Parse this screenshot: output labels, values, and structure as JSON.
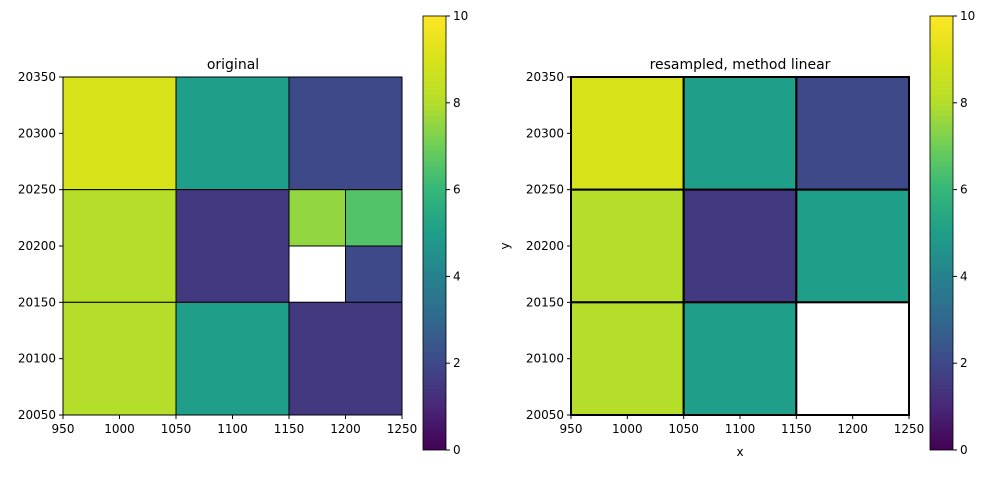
{
  "chart_data": [
    {
      "type": "heatmap",
      "title": "original",
      "xlabel": "",
      "ylabel": "",
      "xlim": [
        950,
        1250
      ],
      "ylim": [
        20050,
        20350
      ],
      "xticks": [
        950,
        1000,
        1050,
        1100,
        1150,
        1200,
        1250
      ],
      "yticks": [
        20050,
        20100,
        20150,
        20200,
        20250,
        20300,
        20350
      ],
      "colormap": "viridis",
      "grid": false,
      "cells": [
        {
          "x0": 950,
          "x1": 1050,
          "y0": 20250,
          "y1": 20350,
          "value": 9
        },
        {
          "x0": 1050,
          "x1": 1150,
          "y0": 20250,
          "y1": 20350,
          "value": 5
        },
        {
          "x0": 1150,
          "x1": 1250,
          "y0": 20250,
          "y1": 20350,
          "value": 2
        },
        {
          "x0": 950,
          "x1": 1050,
          "y0": 20150,
          "y1": 20250,
          "value": 8
        },
        {
          "x0": 1050,
          "x1": 1150,
          "y0": 20150,
          "y1": 20250,
          "value": 1.5
        },
        {
          "x0": 1150,
          "x1": 1200,
          "y0": 20200,
          "y1": 20250,
          "value": 7.5
        },
        {
          "x0": 1200,
          "x1": 1250,
          "y0": 20200,
          "y1": 20250,
          "value": 6.5
        },
        {
          "x0": 1150,
          "x1": 1200,
          "y0": 20150,
          "y1": 20200,
          "value": null
        },
        {
          "x0": 1200,
          "x1": 1250,
          "y0": 20150,
          "y1": 20200,
          "value": 2
        },
        {
          "x0": 950,
          "x1": 1050,
          "y0": 20050,
          "y1": 20150,
          "value": 8
        },
        {
          "x0": 1050,
          "x1": 1150,
          "y0": 20050,
          "y1": 20150,
          "value": 5
        },
        {
          "x0": 1150,
          "x1": 1250,
          "y0": 20050,
          "y1": 20150,
          "value": 1.5
        }
      ],
      "colorbar": {
        "min": 0,
        "max": 10,
        "ticks": [
          0,
          2,
          4,
          6,
          8,
          10
        ]
      }
    },
    {
      "type": "heatmap",
      "title": "resampled, method linear",
      "xlabel": "x",
      "ylabel": "y",
      "xlim": [
        950,
        1250
      ],
      "ylim": [
        20050,
        20350
      ],
      "xticks": [
        950,
        1000,
        1050,
        1100,
        1150,
        1200,
        1250
      ],
      "yticks": [
        20050,
        20100,
        20150,
        20200,
        20250,
        20300,
        20350
      ],
      "colormap": "viridis",
      "grid": false,
      "cells": [
        {
          "x0": 950,
          "x1": 1050,
          "y0": 20250,
          "y1": 20350,
          "value": 9
        },
        {
          "x0": 1050,
          "x1": 1150,
          "y0": 20250,
          "y1": 20350,
          "value": 5
        },
        {
          "x0": 1150,
          "x1": 1250,
          "y0": 20250,
          "y1": 20350,
          "value": 2
        },
        {
          "x0": 950,
          "x1": 1050,
          "y0": 20150,
          "y1": 20250,
          "value": 8
        },
        {
          "x0": 1050,
          "x1": 1150,
          "y0": 20150,
          "y1": 20250,
          "value": 1.5
        },
        {
          "x0": 1150,
          "x1": 1250,
          "y0": 20150,
          "y1": 20250,
          "value": 5
        },
        {
          "x0": 950,
          "x1": 1050,
          "y0": 20050,
          "y1": 20150,
          "value": 8
        },
        {
          "x0": 1050,
          "x1": 1150,
          "y0": 20050,
          "y1": 20150,
          "value": 5
        },
        {
          "x0": 1150,
          "x1": 1250,
          "y0": 20050,
          "y1": 20150,
          "value": null
        }
      ],
      "colorbar": {
        "min": 0,
        "max": 10,
        "ticks": [
          0,
          2,
          4,
          6,
          8,
          10
        ]
      }
    }
  ]
}
